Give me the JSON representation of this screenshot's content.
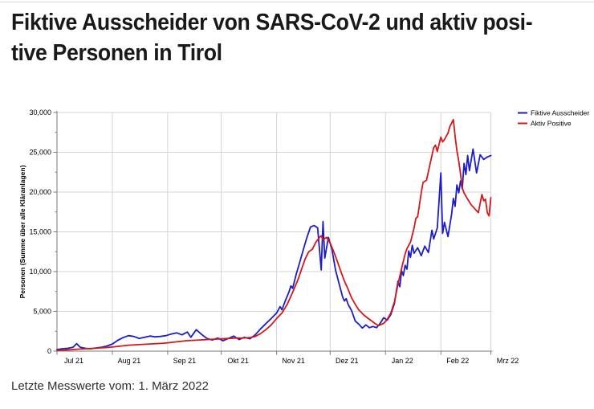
{
  "page": {
    "title_line1": "Fiktive Ausscheider von SARS-CoV-2 und aktiv posi-",
    "title_line2": "tive Personen in Tirol",
    "footer_note": "Letzte Messwerte vom: 1. März 2022"
  },
  "chart_data": {
    "type": "line",
    "title": "Fiktive Ausscheider von SARS-CoV-2 und aktiv positive Personen in Tirol",
    "xlabel": "",
    "ylabel": "Personen (Summe über alle Kläranlagen)",
    "ylim": [
      0,
      30000
    ],
    "y_tick_step": 5000,
    "y_minor_tick_step": 2500,
    "y_tick_labels": [
      "0",
      "5,000",
      "10,000",
      "15,000",
      "20,000",
      "25,000",
      "30,000"
    ],
    "x_tick_labels": [
      "Jul 21",
      "Aug 21",
      "Sep 21",
      "Okt 21",
      "Nov 21",
      "Dez 21",
      "Jan 22",
      "Feb 22",
      "Mrz 22"
    ],
    "x_range": [
      "2021-07-01",
      "2022-03-01"
    ],
    "grid": true,
    "legend_position": "top-right-outside",
    "axis_color": "#7a7a7a",
    "grid_color": "#d4d4d4",
    "series": [
      {
        "name": "Fiktive Ausscheider",
        "color": "#1c1cca",
        "points": [
          [
            "2021-07-01",
            200
          ],
          [
            "2021-07-04",
            300
          ],
          [
            "2021-07-07",
            350
          ],
          [
            "2021-07-10",
            500
          ],
          [
            "2021-07-12",
            950
          ],
          [
            "2021-07-14",
            500
          ],
          [
            "2021-07-17",
            350
          ],
          [
            "2021-07-20",
            300
          ],
          [
            "2021-07-23",
            400
          ],
          [
            "2021-07-26",
            500
          ],
          [
            "2021-07-29",
            650
          ],
          [
            "2021-08-01",
            900
          ],
          [
            "2021-08-04",
            1350
          ],
          [
            "2021-08-07",
            1700
          ],
          [
            "2021-08-10",
            1950
          ],
          [
            "2021-08-13",
            1850
          ],
          [
            "2021-08-16",
            1600
          ],
          [
            "2021-08-19",
            1750
          ],
          [
            "2021-08-22",
            1900
          ],
          [
            "2021-08-25",
            1800
          ],
          [
            "2021-08-28",
            1850
          ],
          [
            "2021-08-31",
            1950
          ],
          [
            "2021-09-03",
            2150
          ],
          [
            "2021-09-06",
            2300
          ],
          [
            "2021-09-09",
            2050
          ],
          [
            "2021-09-12",
            2400
          ],
          [
            "2021-09-14",
            1750
          ],
          [
            "2021-09-17",
            2700
          ],
          [
            "2021-09-20",
            2100
          ],
          [
            "2021-09-23",
            1600
          ],
          [
            "2021-09-26",
            1400
          ],
          [
            "2021-09-29",
            1650
          ],
          [
            "2021-10-02",
            1300
          ],
          [
            "2021-10-05",
            1600
          ],
          [
            "2021-10-08",
            1900
          ],
          [
            "2021-10-11",
            1450
          ],
          [
            "2021-10-14",
            1750
          ],
          [
            "2021-10-17",
            1550
          ],
          [
            "2021-10-20",
            2050
          ],
          [
            "2021-10-23",
            2800
          ],
          [
            "2021-10-26",
            3450
          ],
          [
            "2021-10-29",
            4100
          ],
          [
            "2021-11-01",
            4800
          ],
          [
            "2021-11-03",
            5600
          ],
          [
            "2021-11-04",
            5200
          ],
          [
            "2021-11-06",
            6400
          ],
          [
            "2021-11-08",
            7500
          ],
          [
            "2021-11-09",
            8200
          ],
          [
            "2021-11-10",
            7900
          ],
          [
            "2021-11-12",
            9700
          ],
          [
            "2021-11-14",
            11200
          ],
          [
            "2021-11-16",
            12800
          ],
          [
            "2021-11-18",
            14300
          ],
          [
            "2021-11-20",
            15600
          ],
          [
            "2021-11-22",
            15800
          ],
          [
            "2021-11-24",
            15500
          ],
          [
            "2021-11-26",
            10200
          ],
          [
            "2021-11-27",
            16300
          ],
          [
            "2021-11-28",
            11700
          ],
          [
            "2021-11-30",
            14300
          ],
          [
            "2021-12-02",
            12800
          ],
          [
            "2021-12-04",
            10200
          ],
          [
            "2021-12-06",
            8500
          ],
          [
            "2021-12-08",
            6800
          ],
          [
            "2021-12-09",
            6300
          ],
          [
            "2021-12-10",
            6600
          ],
          [
            "2021-12-11",
            5900
          ],
          [
            "2021-12-13",
            5100
          ],
          [
            "2021-12-15",
            3800
          ],
          [
            "2021-12-17",
            3400
          ],
          [
            "2021-12-19",
            2900
          ],
          [
            "2021-12-21",
            3300
          ],
          [
            "2021-12-23",
            2950
          ],
          [
            "2021-12-25",
            3100
          ],
          [
            "2021-12-27",
            2950
          ],
          [
            "2021-12-29",
            3500
          ],
          [
            "2021-12-31",
            4200
          ],
          [
            "2022-01-02",
            3900
          ],
          [
            "2022-01-04",
            4600
          ],
          [
            "2022-01-06",
            6000
          ],
          [
            "2022-01-08",
            8800
          ],
          [
            "2022-01-09",
            8100
          ],
          [
            "2022-01-10",
            10100
          ],
          [
            "2022-01-11",
            9500
          ],
          [
            "2022-01-12",
            10800
          ],
          [
            "2022-01-13",
            10300
          ],
          [
            "2022-01-14",
            12600
          ],
          [
            "2022-01-15",
            11800
          ],
          [
            "2022-01-16",
            13300
          ],
          [
            "2022-01-17",
            12300
          ],
          [
            "2022-01-19",
            13000
          ],
          [
            "2022-01-21",
            12000
          ],
          [
            "2022-01-23",
            13200
          ],
          [
            "2022-01-25",
            12400
          ],
          [
            "2022-01-27",
            15200
          ],
          [
            "2022-01-28",
            14100
          ],
          [
            "2022-01-30",
            15500
          ],
          [
            "2022-02-01",
            22400
          ],
          [
            "2022-02-02",
            14800
          ],
          [
            "2022-02-03",
            16200
          ],
          [
            "2022-02-05",
            14400
          ],
          [
            "2022-02-07",
            17200
          ],
          [
            "2022-02-08",
            19200
          ],
          [
            "2022-02-09",
            18200
          ],
          [
            "2022-02-10",
            20900
          ],
          [
            "2022-02-11",
            19900
          ],
          [
            "2022-02-12",
            21400
          ],
          [
            "2022-02-13",
            20400
          ],
          [
            "2022-02-14",
            23600
          ],
          [
            "2022-02-15",
            22200
          ],
          [
            "2022-02-16",
            24600
          ],
          [
            "2022-02-17",
            22700
          ],
          [
            "2022-02-19",
            25400
          ],
          [
            "2022-02-20",
            23900
          ],
          [
            "2022-02-21",
            22400
          ],
          [
            "2022-02-23",
            24700
          ],
          [
            "2022-02-25",
            24100
          ],
          [
            "2022-02-27",
            24400
          ],
          [
            "2022-03-01",
            24600
          ]
        ]
      },
      {
        "name": "Aktiv Positive",
        "color": "#d41717",
        "points": [
          [
            "2021-07-01",
            100
          ],
          [
            "2021-07-05",
            130
          ],
          [
            "2021-07-09",
            180
          ],
          [
            "2021-07-13",
            250
          ],
          [
            "2021-07-17",
            300
          ],
          [
            "2021-07-21",
            330
          ],
          [
            "2021-07-25",
            400
          ],
          [
            "2021-07-29",
            450
          ],
          [
            "2021-08-02",
            550
          ],
          [
            "2021-08-06",
            650
          ],
          [
            "2021-08-10",
            750
          ],
          [
            "2021-08-14",
            800
          ],
          [
            "2021-08-18",
            850
          ],
          [
            "2021-08-22",
            900
          ],
          [
            "2021-08-26",
            950
          ],
          [
            "2021-08-30",
            1000
          ],
          [
            "2021-09-03",
            1100
          ],
          [
            "2021-09-07",
            1200
          ],
          [
            "2021-09-11",
            1300
          ],
          [
            "2021-09-15",
            1350
          ],
          [
            "2021-09-19",
            1400
          ],
          [
            "2021-09-23",
            1450
          ],
          [
            "2021-09-27",
            1500
          ],
          [
            "2021-10-01",
            1550
          ],
          [
            "2021-10-05",
            1600
          ],
          [
            "2021-10-09",
            1650
          ],
          [
            "2021-10-13",
            1650
          ],
          [
            "2021-10-17",
            1700
          ],
          [
            "2021-10-20",
            1850
          ],
          [
            "2021-10-23",
            2200
          ],
          [
            "2021-10-26",
            2700
          ],
          [
            "2021-10-29",
            3300
          ],
          [
            "2021-11-01",
            4100
          ],
          [
            "2021-11-04",
            4800
          ],
          [
            "2021-11-07",
            5900
          ],
          [
            "2021-11-10",
            7400
          ],
          [
            "2021-11-13",
            9000
          ],
          [
            "2021-11-15",
            10300
          ],
          [
            "2021-11-17",
            11600
          ],
          [
            "2021-11-19",
            12500
          ],
          [
            "2021-11-21",
            12800
          ],
          [
            "2021-11-23",
            13700
          ],
          [
            "2021-11-25",
            14300
          ],
          [
            "2021-11-26",
            14500
          ],
          [
            "2021-11-27",
            14000
          ],
          [
            "2021-11-29",
            14300
          ],
          [
            "2021-12-01",
            13600
          ],
          [
            "2021-12-03",
            12500
          ],
          [
            "2021-12-05",
            11300
          ],
          [
            "2021-12-07",
            10000
          ],
          [
            "2021-12-09",
            8800
          ],
          [
            "2021-12-11",
            7800
          ],
          [
            "2021-12-13",
            6700
          ],
          [
            "2021-12-15",
            5900
          ],
          [
            "2021-12-17",
            5200
          ],
          [
            "2021-12-20",
            4500
          ],
          [
            "2021-12-23",
            4000
          ],
          [
            "2021-12-26",
            3500
          ],
          [
            "2021-12-28",
            3200
          ],
          [
            "2021-12-31",
            3500
          ],
          [
            "2022-01-02",
            4000
          ],
          [
            "2022-01-04",
            4800
          ],
          [
            "2022-01-06",
            6200
          ],
          [
            "2022-01-08",
            8400
          ],
          [
            "2022-01-10",
            10400
          ],
          [
            "2022-01-12",
            12200
          ],
          [
            "2022-01-13",
            12900
          ],
          [
            "2022-01-15",
            13700
          ],
          [
            "2022-01-17",
            15500
          ],
          [
            "2022-01-18",
            16700
          ],
          [
            "2022-01-19",
            16900
          ],
          [
            "2022-01-21",
            19900
          ],
          [
            "2022-01-22",
            21200
          ],
          [
            "2022-01-24",
            21500
          ],
          [
            "2022-01-26",
            23600
          ],
          [
            "2022-01-28",
            25600
          ],
          [
            "2022-01-29",
            25900
          ],
          [
            "2022-01-30",
            25100
          ],
          [
            "2022-02-01",
            26900
          ],
          [
            "2022-02-02",
            26300
          ],
          [
            "2022-02-03",
            26600
          ],
          [
            "2022-02-05",
            27400
          ],
          [
            "2022-02-06",
            28200
          ],
          [
            "2022-02-08",
            29100
          ],
          [
            "2022-02-09",
            27000
          ],
          [
            "2022-02-10",
            25200
          ],
          [
            "2022-02-11",
            23900
          ],
          [
            "2022-02-12",
            22300
          ],
          [
            "2022-02-13",
            20500
          ],
          [
            "2022-02-14",
            19900
          ],
          [
            "2022-02-16",
            19100
          ],
          [
            "2022-02-18",
            18400
          ],
          [
            "2022-02-20",
            17900
          ],
          [
            "2022-02-22",
            17400
          ],
          [
            "2022-02-24",
            19700
          ],
          [
            "2022-02-25",
            18900
          ],
          [
            "2022-02-26",
            19100
          ],
          [
            "2022-02-27",
            17400
          ],
          [
            "2022-02-28",
            17000
          ],
          [
            "2022-03-01",
            19300
          ]
        ]
      }
    ]
  }
}
